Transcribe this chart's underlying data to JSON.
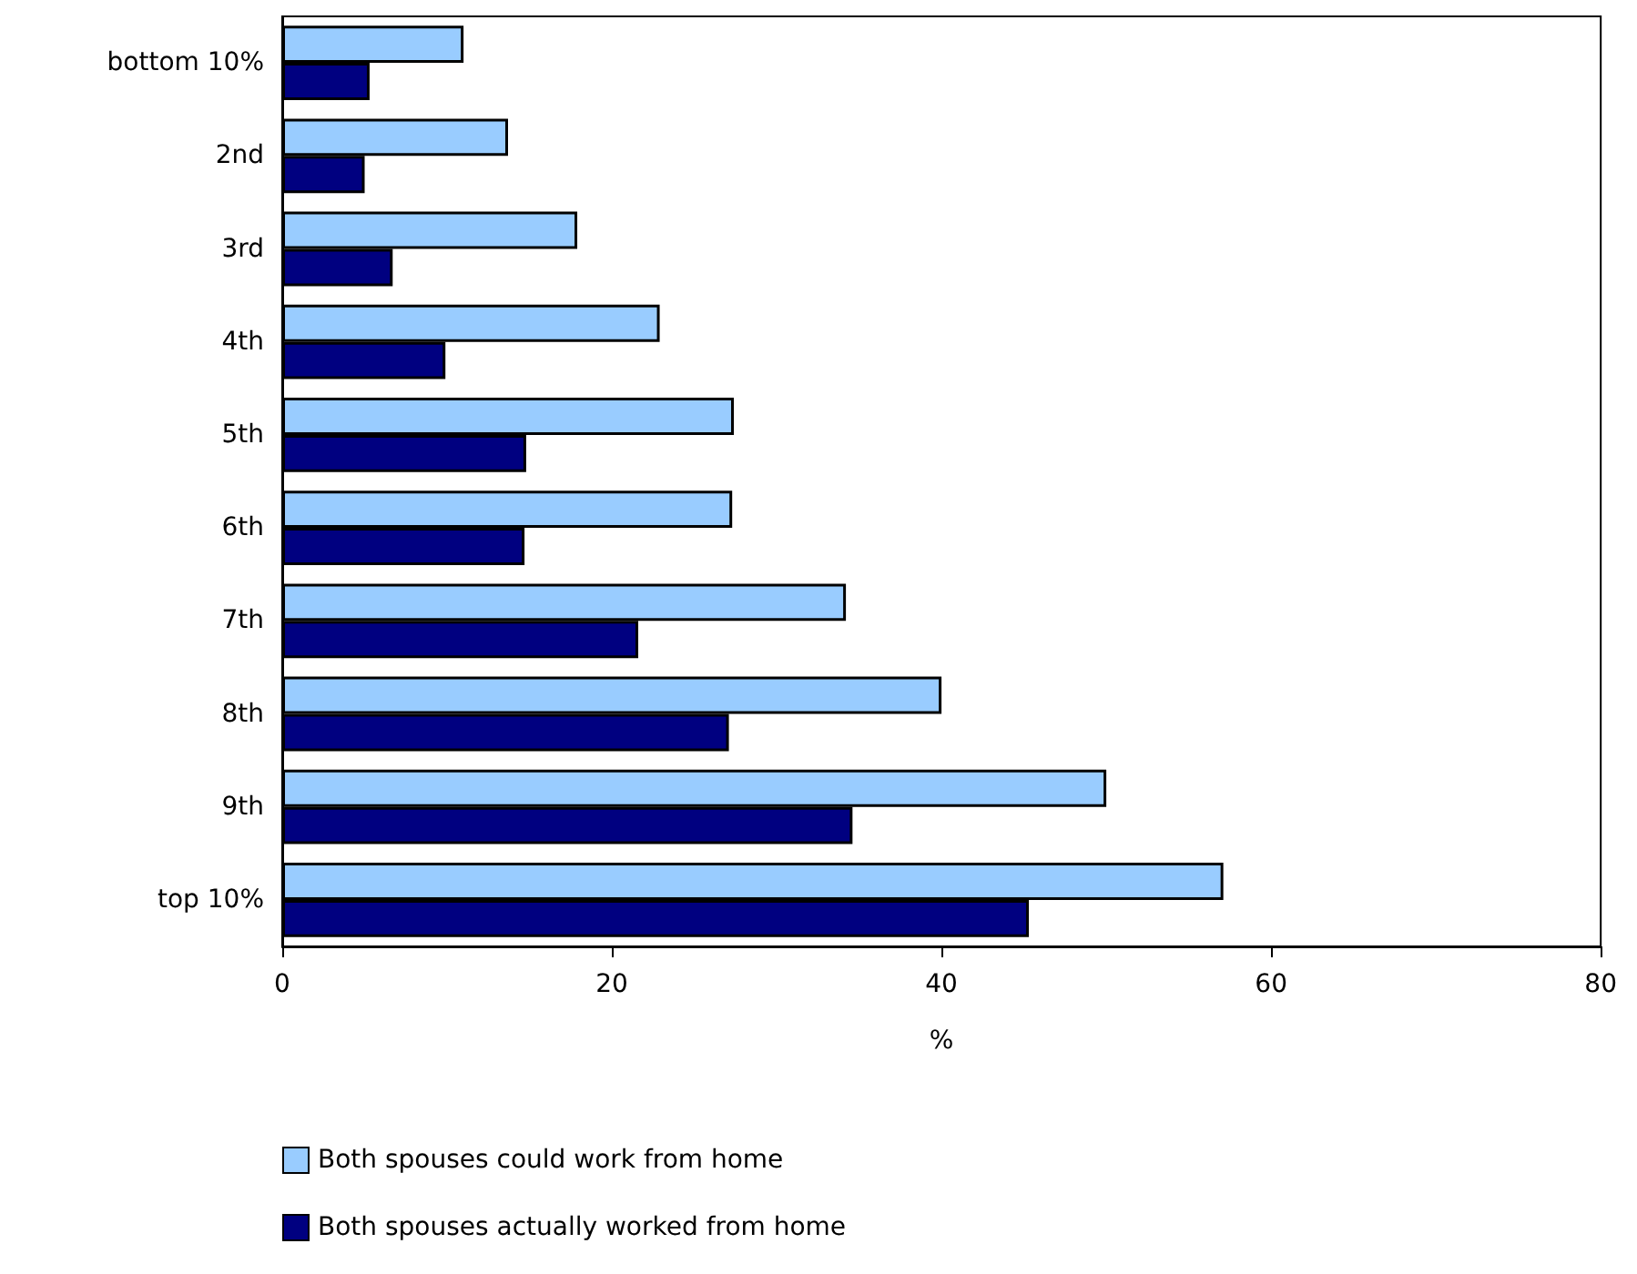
{
  "chart_data": {
    "type": "bar",
    "orientation": "horizontal",
    "xlabel": "%",
    "categories": [
      "bottom 10%",
      "2nd",
      "3rd",
      "4th",
      "5th",
      "6th",
      "7th",
      "8th",
      "9th",
      "top 10%"
    ],
    "series": [
      {
        "name": "Both spouses could work from home",
        "color": "#99ccff",
        "values": [
          11.0,
          13.7,
          17.9,
          22.9,
          27.4,
          27.3,
          34.2,
          40.0,
          50.0,
          57.1
        ]
      },
      {
        "name": "Both spouses actually worked from home",
        "color": "#000080",
        "values": [
          5.3,
          5.0,
          6.7,
          9.9,
          14.8,
          14.7,
          21.6,
          27.1,
          34.6,
          45.3
        ]
      }
    ],
    "xlim": [
      0,
      80
    ],
    "xticks": [
      0,
      20,
      40,
      60,
      80
    ],
    "grid": false,
    "legend": "bottom left"
  }
}
